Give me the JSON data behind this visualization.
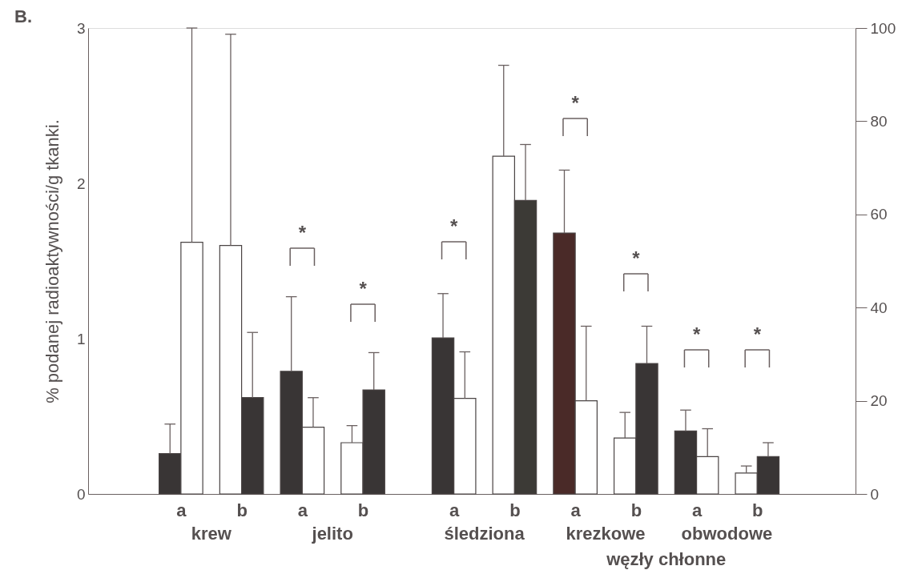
{
  "chart_data": {
    "type": "bar",
    "title": "B.",
    "ylabel": "% podanej radioaktywności/g tkanki.",
    "categories": [
      "a",
      "b",
      "a",
      "b",
      "a",
      "b",
      "a",
      "b",
      "a",
      "b"
    ],
    "series": [
      {
        "values": [
          0.26,
          1.6,
          0.79,
          0.33,
          null,
          null,
          null,
          null,
          null,
          null
        ],
        "colors": [
          "#393535",
          "#ffffff",
          "#393535",
          "#ffffff",
          null,
          null,
          null,
          null,
          null,
          null
        ],
        "errors": [
          [
            0.26,
            0.45
          ],
          [
            1.6,
            2.96
          ],
          [
            0.79,
            1.27
          ],
          [
            0.33,
            0.44
          ],
          null,
          null,
          null,
          null,
          null,
          null
        ]
      },
      {
        "values": [
          1.62,
          0.62,
          0.43,
          0.67,
          null,
          null,
          null,
          null,
          null,
          null
        ],
        "colors": [
          "#ffffff",
          "#393535",
          "#ffffff",
          "#393535",
          null,
          null,
          null,
          null,
          null,
          null
        ],
        "errors": [
          [
            1.62,
            3.0
          ],
          [
            0.62,
            1.04
          ],
          [
            0.43,
            0.62
          ],
          [
            0.67,
            0.91
          ],
          null,
          null,
          null,
          null,
          null,
          null
        ]
      },
      {
        "axis": "y2",
        "values": [
          null,
          null,
          null,
          null,
          33.5,
          72.5,
          56,
          12,
          13.5,
          4.5
        ],
        "colors": [
          null,
          null,
          null,
          null,
          "#393535",
          "#ffffff",
          "#4a2a28",
          "#ffffff",
          "#393535",
          "#ffffff"
        ],
        "errors": [
          null,
          null,
          null,
          null,
          [
            33.5,
            43
          ],
          [
            72.5,
            92
          ],
          [
            56,
            69.5
          ],
          [
            12,
            17.5
          ],
          [
            13.5,
            18
          ],
          [
            4.5,
            6
          ]
        ]
      },
      {
        "axis": "y2",
        "values": [
          null,
          null,
          null,
          null,
          20.5,
          63,
          20,
          28,
          8,
          8
        ],
        "colors": [
          null,
          null,
          null,
          null,
          "#ffffff",
          "#3c3a36",
          "#ffffff",
          "#393535",
          "#ffffff",
          "#393535"
        ],
        "errors": [
          null,
          null,
          null,
          null,
          [
            20.5,
            30.5
          ],
          [
            63,
            75
          ],
          [
            20,
            36
          ],
          [
            28,
            36
          ],
          [
            8,
            14
          ],
          [
            8,
            11
          ]
        ]
      }
    ],
    "ylim": [
      0,
      3
    ],
    "yticks": [
      0,
      1,
      2,
      3
    ],
    "y2lim": [
      0,
      100
    ],
    "y2ticks": [
      0,
      20,
      40,
      60,
      80,
      100
    ],
    "grid": false,
    "annotations": [
      "krew",
      "jelito",
      "śledziona",
      "krezkowe",
      "obwodowe",
      "węzły chłonne",
      "*",
      "*",
      "*",
      "*",
      "*",
      "*",
      "*"
    ]
  }
}
